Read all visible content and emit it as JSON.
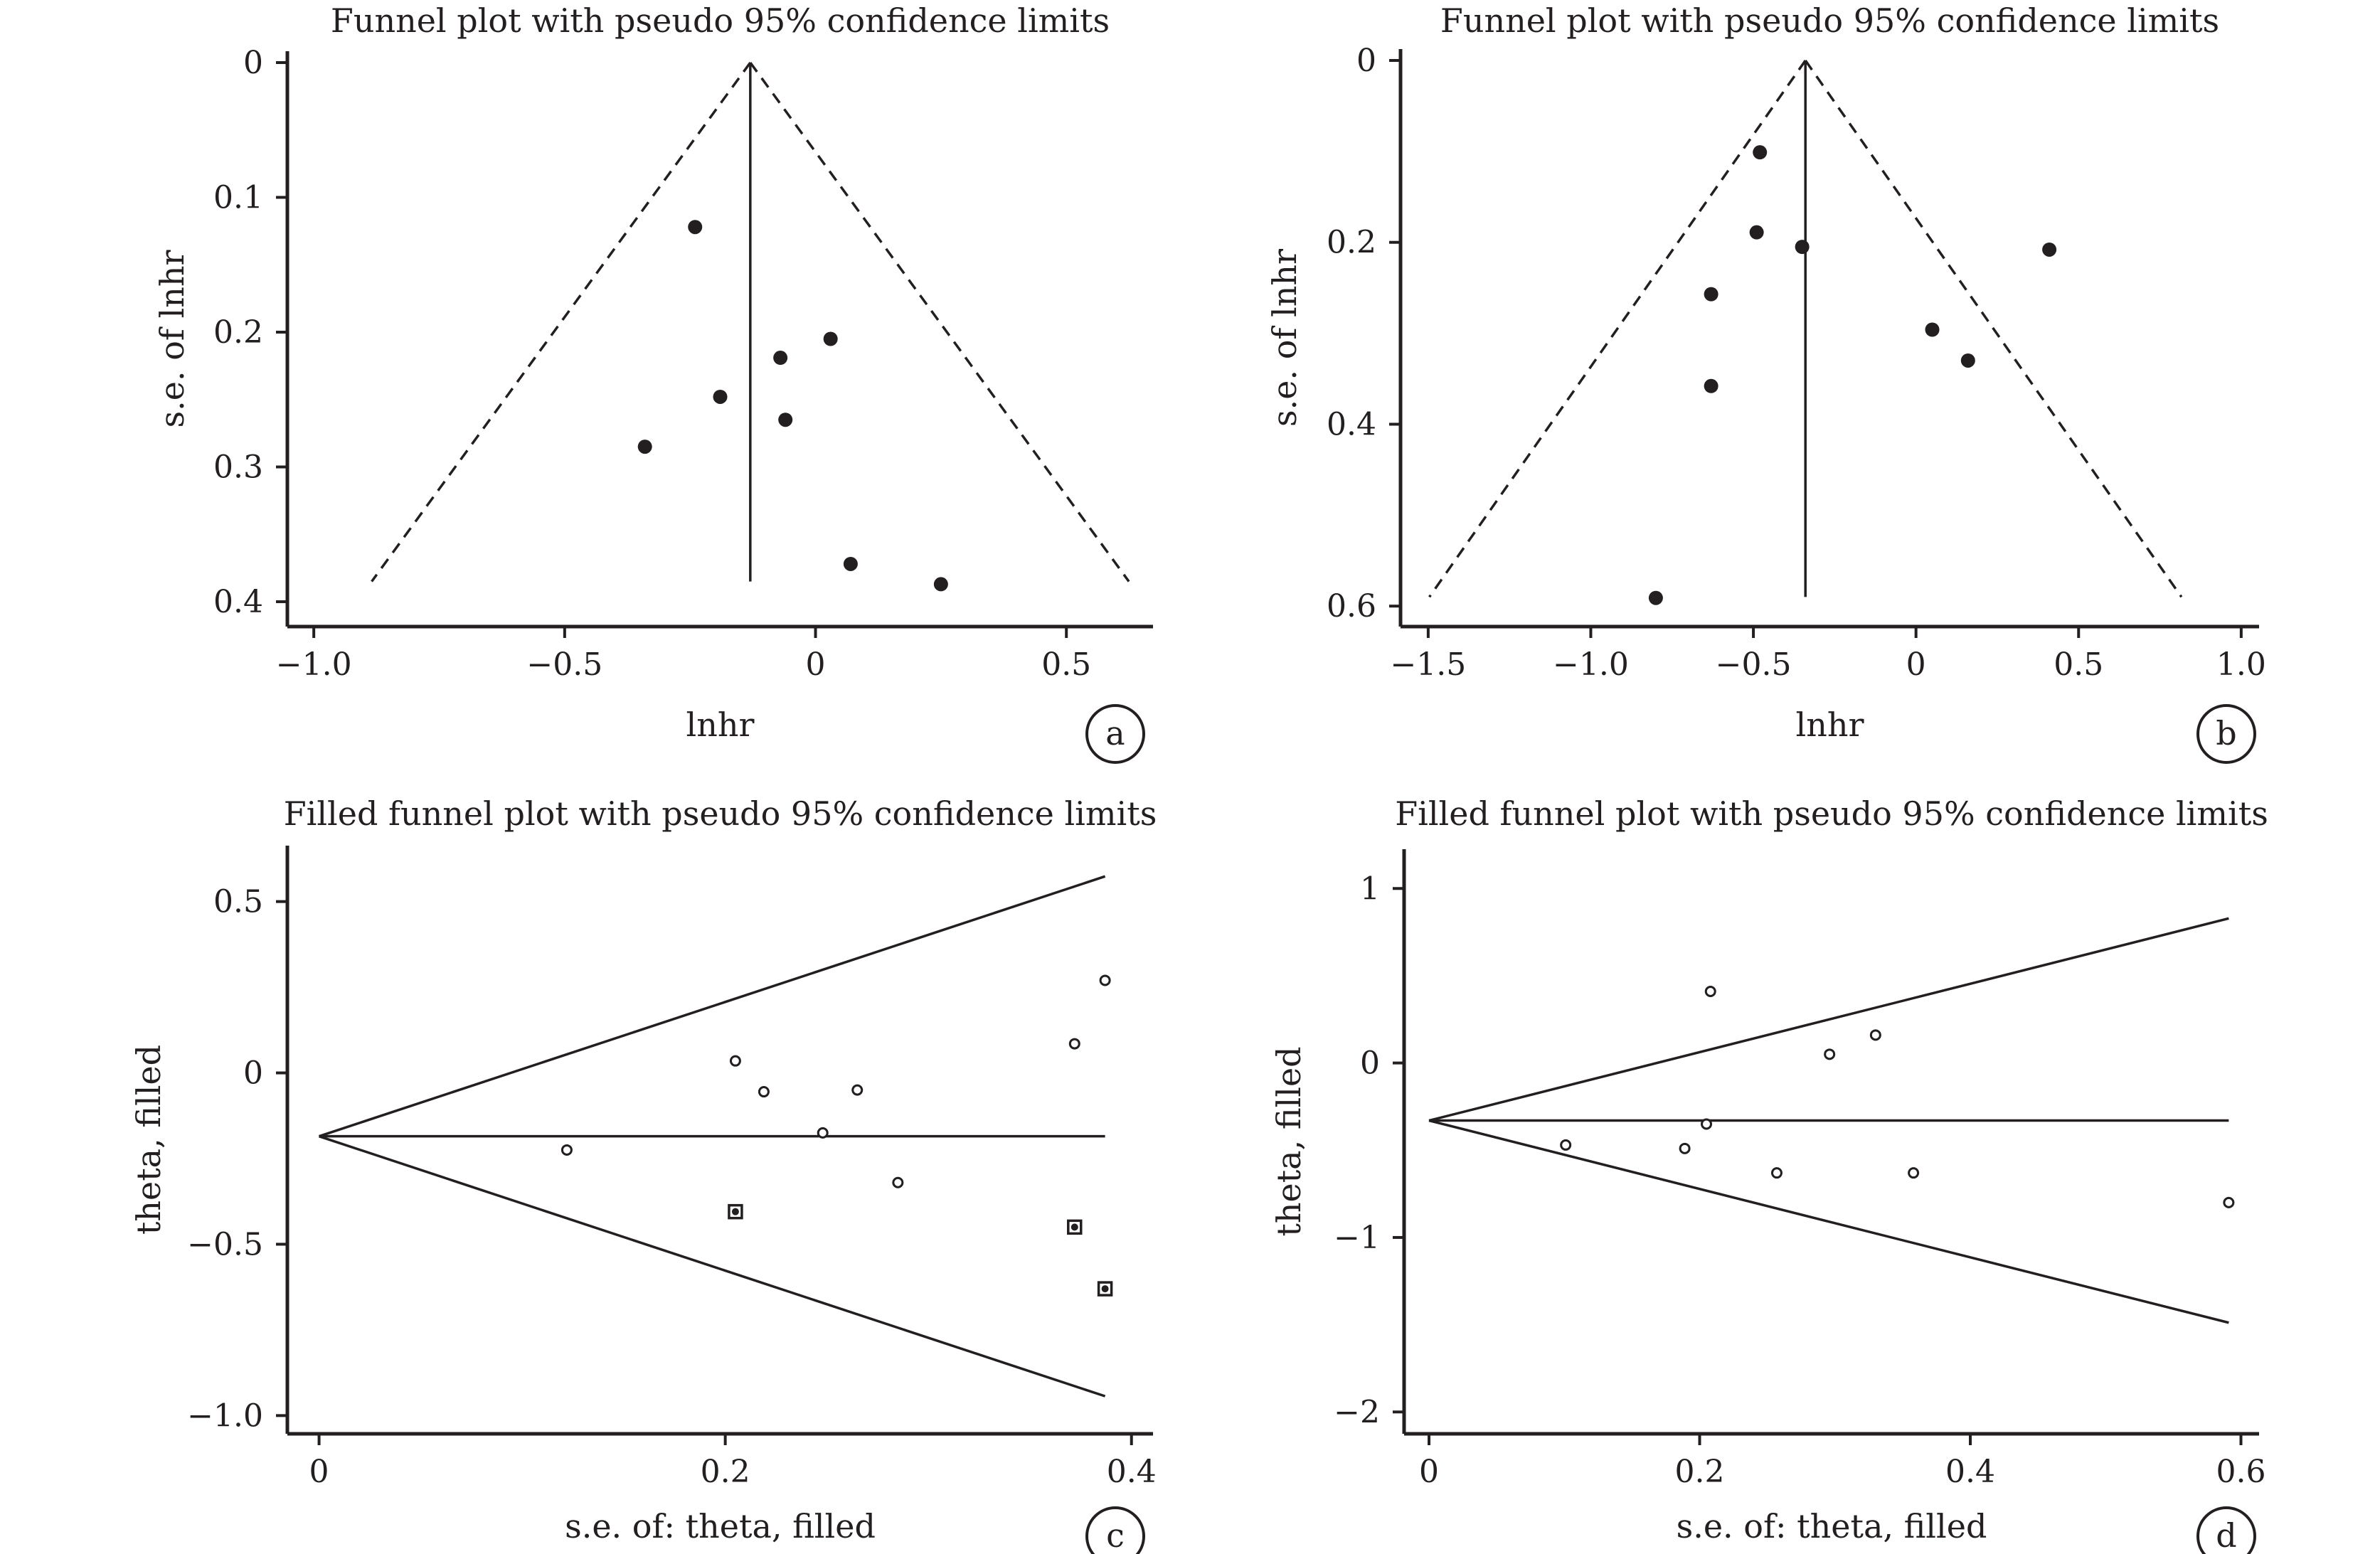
{
  "figure": {
    "line_color": "#231f20",
    "background": "#ffffff"
  },
  "chart_data": [
    {
      "id": "a",
      "type": "scatter",
      "variant": "funnel",
      "title": "Funnel plot with pseudo 95% confidence limits",
      "xlabel": "lnhr",
      "ylabel": "s.e. of lnhr",
      "y_inverted": true,
      "panel_label": "a",
      "xlim": [
        -1.03,
        0.65
      ],
      "ylim": [
        0,
        0.41
      ],
      "xticks": [
        -1.0,
        -0.5,
        0,
        0.5
      ],
      "xtick_labels": [
        "−1.0",
        "−0.5",
        "0",
        "0.5"
      ],
      "yticks": [
        0,
        0.1,
        0.2,
        0.3,
        0.4
      ],
      "ytick_labels": [
        "0",
        "0.1",
        "0.2",
        "0.3",
        "0.4"
      ],
      "center": -0.13,
      "se_max": 0.385,
      "points": [
        {
          "x": -0.24,
          "y": 0.122
        },
        {
          "x": 0.03,
          "y": 0.205
        },
        {
          "x": -0.07,
          "y": 0.219
        },
        {
          "x": -0.19,
          "y": 0.248
        },
        {
          "x": -0.06,
          "y": 0.265
        },
        {
          "x": -0.34,
          "y": 0.285
        },
        {
          "x": 0.07,
          "y": 0.372
        },
        {
          "x": 0.25,
          "y": 0.387
        }
      ],
      "grid": false,
      "legend": "none"
    },
    {
      "id": "b",
      "type": "scatter",
      "variant": "funnel",
      "title": "Funnel plot with pseudo 95% confidence limits",
      "xlabel": "lnhr",
      "ylabel": "s.e. of lnhr",
      "y_inverted": true,
      "panel_label": "b",
      "xlim": [
        -1.55,
        1.02
      ],
      "ylim": [
        0,
        0.61
      ],
      "xticks": [
        -1.5,
        -1.0,
        -0.5,
        0,
        0.5,
        1.0
      ],
      "xtick_labels": [
        "−1.5",
        "−1.0",
        "−0.5",
        "0",
        "0.5",
        "1.0"
      ],
      "yticks": [
        0,
        0.2,
        0.4,
        0.6
      ],
      "ytick_labels": [
        "0",
        "0.2",
        "0.4",
        "0.6"
      ],
      "center": -0.34,
      "se_max": 0.59,
      "points": [
        {
          "x": -0.48,
          "y": 0.101
        },
        {
          "x": -0.49,
          "y": 0.189
        },
        {
          "x": -0.35,
          "y": 0.205
        },
        {
          "x": 0.41,
          "y": 0.208
        },
        {
          "x": -0.63,
          "y": 0.257
        },
        {
          "x": 0.05,
          "y": 0.296
        },
        {
          "x": 0.16,
          "y": 0.33
        },
        {
          "x": -0.63,
          "y": 0.358
        },
        {
          "x": -0.8,
          "y": 0.591
        }
      ],
      "grid": false,
      "legend": "none"
    },
    {
      "id": "c",
      "type": "scatter",
      "variant": "filled-funnel",
      "title": "Filled funnel plot with pseudo 95% confidence limits",
      "xlabel": "s.e. of: theta, filled",
      "ylabel": "theta, filled",
      "panel_label": "c",
      "xlim": [
        -0.01,
        0.405
      ],
      "ylim": [
        -1.02,
        0.63
      ],
      "xticks": [
        0,
        0.2,
        0.4
      ],
      "xtick_labels": [
        "0",
        "0.2",
        "0.4"
      ],
      "yticks": [
        0.5,
        0,
        -0.5,
        -1.0
      ],
      "ytick_labels": [
        "0.5",
        "0",
        "−0.5",
        "−1.0"
      ],
      "center": -0.185,
      "se_max": 0.387,
      "points": [
        {
          "x": 0.122,
          "y": -0.225
        },
        {
          "x": 0.205,
          "y": 0.035
        },
        {
          "x": 0.219,
          "y": -0.055
        },
        {
          "x": 0.248,
          "y": -0.175
        },
        {
          "x": 0.265,
          "y": -0.05
        },
        {
          "x": 0.285,
          "y": -0.32
        },
        {
          "x": 0.372,
          "y": 0.085
        },
        {
          "x": 0.387,
          "y": 0.27
        }
      ],
      "filled_points": [
        {
          "x": 0.205,
          "y": -0.405
        },
        {
          "x": 0.372,
          "y": -0.45
        },
        {
          "x": 0.387,
          "y": -0.63
        }
      ],
      "grid": false,
      "legend": "none"
    },
    {
      "id": "d",
      "type": "scatter",
      "variant": "filled-funnel",
      "title": "Filled funnel plot with pseudo 95% confidence limits",
      "xlabel": "s.e. of: theta, filled",
      "ylabel": "theta, filled",
      "panel_label": "d",
      "xlim": [
        -0.01,
        0.605
      ],
      "ylim": [
        -2.06,
        1.16
      ],
      "xticks": [
        0,
        0.2,
        0.4,
        0.6
      ],
      "xtick_labels": [
        "0",
        "0.2",
        "0.4",
        "0.6"
      ],
      "yticks": [
        1,
        0,
        -1,
        -2
      ],
      "ytick_labels": [
        "1",
        "0",
        "−1",
        "−2"
      ],
      "center": -0.33,
      "se_max": 0.591,
      "points": [
        {
          "x": 0.101,
          "y": -0.47
        },
        {
          "x": 0.189,
          "y": -0.49
        },
        {
          "x": 0.205,
          "y": -0.35
        },
        {
          "x": 0.208,
          "y": 0.41
        },
        {
          "x": 0.257,
          "y": -0.63
        },
        {
          "x": 0.296,
          "y": 0.05
        },
        {
          "x": 0.33,
          "y": 0.16
        },
        {
          "x": 0.358,
          "y": -0.63
        },
        {
          "x": 0.591,
          "y": -0.8
        }
      ],
      "filled_points": [],
      "grid": false,
      "legend": "none"
    }
  ]
}
